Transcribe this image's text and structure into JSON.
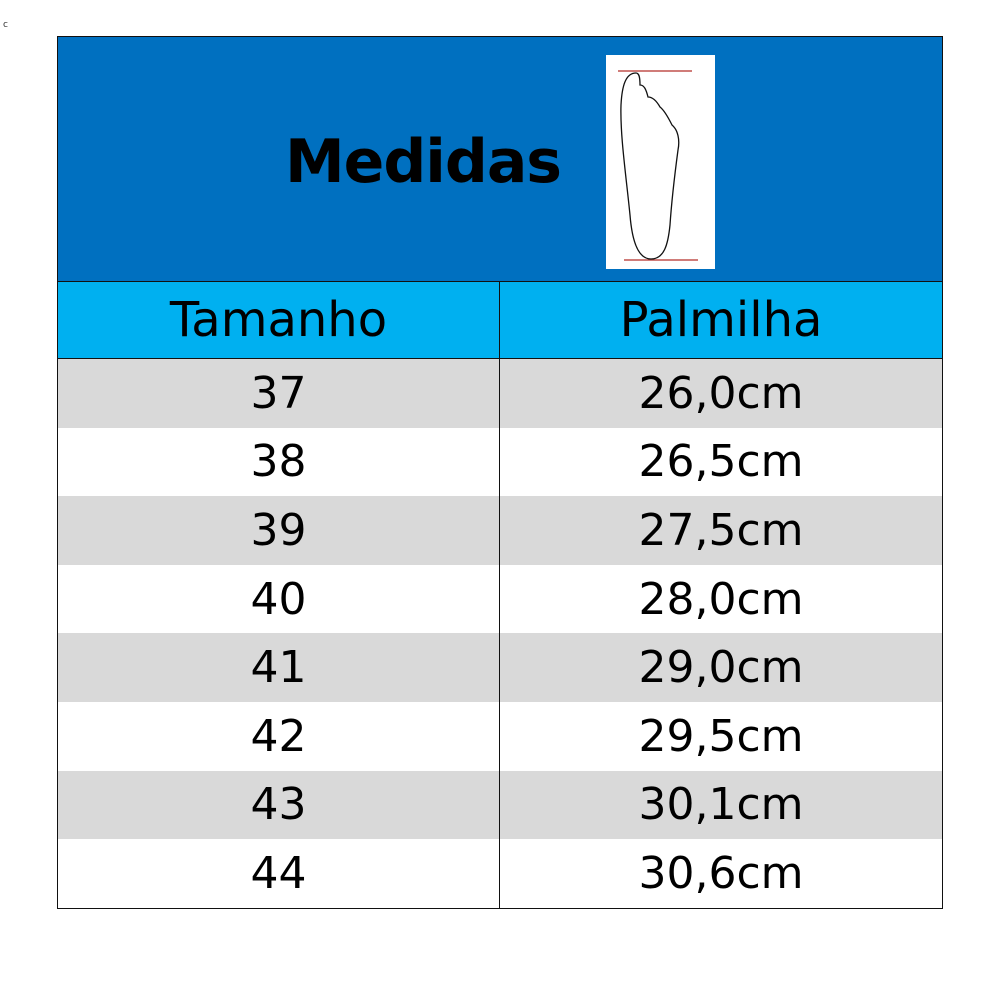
{
  "corner_mark": "c",
  "title": "Medidas",
  "foot_icon": "foot-outline-icon",
  "colors": {
    "title_bg": "#0070c0",
    "header_bg": "#00b0f0",
    "stripe": "#d9d9d9",
    "measure_line": "#c0504d"
  },
  "headers": {
    "size": "Tamanho",
    "insole": "Palmilha"
  },
  "rows": [
    {
      "size": "37",
      "insole": "26,0cm"
    },
    {
      "size": "38",
      "insole": "26,5cm"
    },
    {
      "size": "39",
      "insole": "27,5cm"
    },
    {
      "size": "40",
      "insole": "28,0cm"
    },
    {
      "size": "41",
      "insole": "29,0cm"
    },
    {
      "size": "42",
      "insole": "29,5cm"
    },
    {
      "size": "43",
      "insole": "30,1cm"
    },
    {
      "size": "44",
      "insole": "30,6cm"
    }
  ]
}
